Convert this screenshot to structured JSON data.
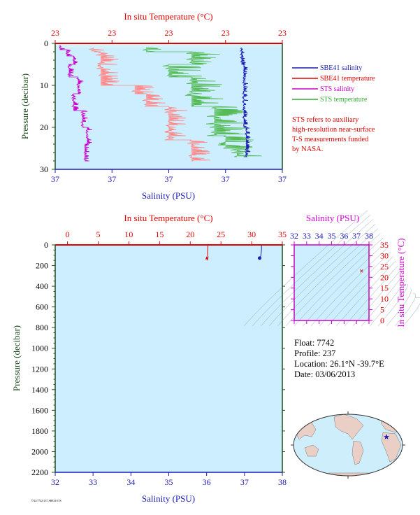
{
  "colors": {
    "temperature": "#dd0000",
    "salinity": "#1b1bb5",
    "pressure": "#1f4d1f",
    "sts_salinity": "#cc00cc",
    "sts_temperature": "#33aa33",
    "sbe41_temperature_trace": "#ff8a8a",
    "sts_temperature_trace": "#55bb55",
    "plot_bg": "#cceeff",
    "plot_bg_top": "#d4f2fa"
  },
  "chart_data": [
    {
      "type": "line",
      "panel": "near-surface",
      "title_top": "In situ Temperature (°C)",
      "xlabel_bottom": "Salinity (PSU)",
      "ylabel": "Pressure (decibar)",
      "top_tick_labels": [
        "23",
        "23",
        "23",
        "23",
        "23"
      ],
      "bottom_tick_labels": [
        "37",
        "37",
        "37",
        "37",
        "37"
      ],
      "y_tick_labels": [
        "0",
        "10",
        "20",
        "30"
      ],
      "ylim": [
        0,
        30
      ],
      "y_inverted": true,
      "legend": [
        {
          "name": "SBE41 salinity",
          "color": "#1b1bb5"
        },
        {
          "name": "SBE41 temperature",
          "color": "#dd0000"
        },
        {
          "name": "STS salinity",
          "color": "#cc00cc"
        },
        {
          "name": "STS temperature",
          "color": "#33aa33"
        }
      ],
      "note": [
        "STS refers to auxiliary",
        "high-resolution near-surface",
        "T-S measurements funded",
        "by NASA."
      ],
      "series": [
        {
          "name": "SBE41 salinity",
          "x_frac": [
            0.82,
            0.83,
            0.83,
            0.84,
            0.83
          ],
          "y": [
            1,
            5,
            12,
            20,
            27
          ]
        },
        {
          "name": "SBE41 temperature",
          "x_frac": [
            0.17,
            0.2,
            0.2,
            0.35,
            0.4,
            0.5,
            0.5,
            0.6,
            0.6
          ],
          "y": [
            1,
            2,
            5,
            10,
            12,
            15,
            21,
            23,
            28
          ]
        },
        {
          "name": "STS salinity",
          "x_frac": [
            0.02,
            0.05,
            0.08,
            0.06,
            0.1,
            0.08,
            0.12,
            0.14,
            0.13,
            0.15
          ],
          "y": [
            0.5,
            1.5,
            3,
            5,
            8,
            12,
            16,
            20,
            24,
            28
          ]
        },
        {
          "name": "STS temperature",
          "x_frac": [
            0.4,
            0.6,
            0.5,
            0.6,
            0.7,
            0.7,
            0.75,
            0.8,
            0.8
          ],
          "y": [
            1,
            2,
            5,
            8,
            15,
            20,
            22,
            25,
            27
          ]
        }
      ]
    },
    {
      "type": "line",
      "panel": "full-profile",
      "title_top": "In situ Temperature (°C)",
      "xlabel_bottom": "Salinity (PSU)",
      "ylabel": "Pressure (decibar)",
      "top_ticks": [
        0,
        5,
        10,
        15,
        20,
        25,
        30,
        35
      ],
      "bottom_ticks": [
        32,
        33,
        34,
        35,
        36,
        37,
        38
      ],
      "y_ticks": [
        0,
        200,
        400,
        600,
        800,
        1000,
        1200,
        1400,
        1600,
        1800,
        2000,
        2200
      ],
      "xlim_temperature": [
        -2,
        35
      ],
      "xlim_salinity": [
        32,
        38
      ],
      "ylim": [
        0,
        2200
      ],
      "y_inverted": true,
      "series": [
        {
          "name": "Temperature",
          "x": [
            22.9,
            22.85,
            22.8,
            22.9,
            22.8
          ],
          "y": [
            0,
            40,
            80,
            120,
            150
          ]
        },
        {
          "name": "Salinity",
          "x": [
            37.45,
            37.45,
            37.44,
            37.43,
            37.4
          ],
          "y": [
            0,
            40,
            80,
            110,
            130
          ]
        }
      ]
    },
    {
      "type": "scatter",
      "panel": "T-S diagram",
      "title_top": "Salinity (PSU)",
      "ylabel": "In situ Temperature (°C)",
      "x_ticks": [
        32,
        33,
        34,
        35,
        36,
        37,
        38
      ],
      "y_ticks": [
        0,
        5,
        10,
        15,
        20,
        25,
        30,
        35
      ],
      "xlim": [
        32,
        38
      ],
      "ylim": [
        0,
        35
      ],
      "points": [
        {
          "x": 37.4,
          "y": 22.9
        }
      ]
    }
  ],
  "info": {
    "float": "Float:  7742",
    "profile": "Profile:  237",
    "location": "Location:  26.1°N  -39.7°E",
    "date": "Date:  03/06/2013"
  },
  "map": {
    "marker_symbol": "★"
  },
  "footer": "7742/7742-237.SBE41STS"
}
